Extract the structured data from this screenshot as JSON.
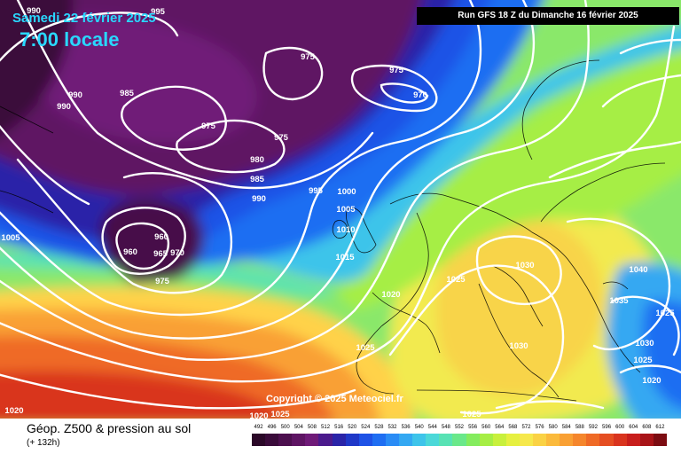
{
  "header": {
    "date": "Samedi 22 février 2025",
    "time": "7:00 locale",
    "run": "Run GFS 18 Z du Dimanche 16 février 2025"
  },
  "copyright": "Copyright © 2025 Meteociel.fr",
  "legend": {
    "title": "Géop. Z500 & pression au sol",
    "subtitle": "(+ 132h)",
    "scale_values": [
      "492",
      "496",
      "500",
      "504",
      "508",
      "512",
      "516",
      "520",
      "524",
      "528",
      "532",
      "536",
      "540",
      "544",
      "548",
      "552",
      "556",
      "560",
      "564",
      "568",
      "572",
      "576",
      "580",
      "584",
      "588",
      "592",
      "596",
      "600",
      "604",
      "608",
      "612"
    ],
    "scale_colors": [
      "#2b0828",
      "#3a0b3a",
      "#4c0f4e",
      "#5e1463",
      "#6f1a78",
      "#4b1a8c",
      "#2a24a8",
      "#1f38c8",
      "#1e52e6",
      "#1f6ef2",
      "#2a8cf5",
      "#34a8f2",
      "#3ec4ea",
      "#4bd8d8",
      "#58e2b4",
      "#6ae88a",
      "#84ec5e",
      "#a6ee44",
      "#c8f03c",
      "#e6f040",
      "#f6e84c",
      "#fad244",
      "#fbba3c",
      "#f9a034",
      "#f5862c",
      "#ef6a26",
      "#e54e22",
      "#d9341e",
      "#c81e1c",
      "#a81418",
      "#7c0c12"
    ]
  },
  "isobars": [
    {
      "label": "990"
    },
    {
      "label": "995"
    },
    {
      "label": "990"
    },
    {
      "label": "990"
    },
    {
      "label": "985"
    },
    {
      "label": "975"
    },
    {
      "label": "975"
    },
    {
      "label": "970"
    },
    {
      "label": "975"
    },
    {
      "label": "975"
    },
    {
      "label": "980"
    },
    {
      "label": "985"
    },
    {
      "label": "990"
    },
    {
      "label": "995"
    },
    {
      "label": "1000"
    },
    {
      "label": "1005"
    },
    {
      "label": "1010"
    },
    {
      "label": "1015"
    },
    {
      "label": "960"
    },
    {
      "label": "960"
    },
    {
      "label": "965"
    },
    {
      "label": "970"
    },
    {
      "label": "975"
    },
    {
      "label": "1005"
    },
    {
      "label": "1020"
    },
    {
      "label": "1025"
    },
    {
      "label": "1030"
    },
    {
      "label": "1040"
    },
    {
      "label": "1035"
    },
    {
      "label": "1025"
    },
    {
      "label": "1025"
    },
    {
      "label": "1030"
    },
    {
      "label": "1030"
    },
    {
      "label": "1025"
    },
    {
      "label": "1020"
    },
    {
      "label": "1020"
    },
    {
      "label": "1025"
    },
    {
      "label": "1025"
    },
    {
      "label": "1020"
    }
  ]
}
